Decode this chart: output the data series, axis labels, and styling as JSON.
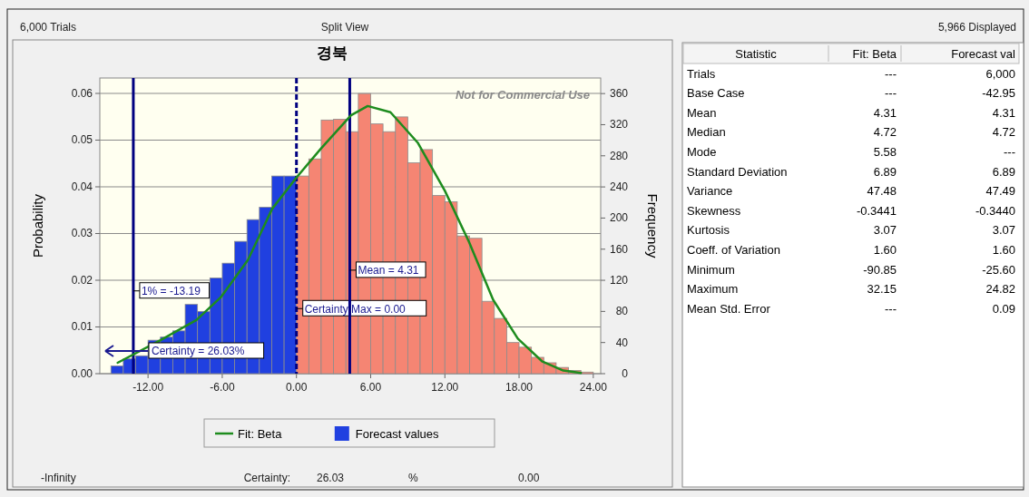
{
  "chart_data": [
    {
      "type": "histogram",
      "title": "경북",
      "ylabel": "Probability",
      "y2label": "Frequency",
      "annotations": [
        "6,000 Trials",
        "Split View",
        "5,966 Displayed",
        "Not for Commercial Use",
        "Certainty = 26.03%",
        "-Infinity",
        "Certainty:",
        "26.03",
        "%",
        "0.00"
      ],
      "xlim": [
        -15.9,
        24.6
      ],
      "xticks": [
        {
          "value": -12,
          "label": "-12.00"
        },
        {
          "value": -6,
          "label": "-6.00"
        },
        {
          "value": 0,
          "label": "0.00"
        },
        {
          "value": 6,
          "label": "6.00"
        },
        {
          "value": 12,
          "label": "12.00"
        },
        {
          "value": 18,
          "label": "18.00"
        },
        {
          "value": 24,
          "label": "24.00"
        }
      ],
      "ylim": [
        0,
        0.0633
      ],
      "yticks": [
        {
          "value": 0,
          "label": "0.00"
        },
        {
          "value": 0.01,
          "label": "0.01"
        },
        {
          "value": 0.02,
          "label": "0.02"
        },
        {
          "value": 0.03,
          "label": "0.03"
        },
        {
          "value": 0.04,
          "label": "0.04"
        },
        {
          "value": 0.05,
          "label": "0.05"
        },
        {
          "value": 0.06,
          "label": "0.06"
        }
      ],
      "y2lim": [
        0,
        380
      ],
      "y2ticks": [
        0,
        40,
        80,
        120,
        160,
        200,
        240,
        280,
        320,
        360
      ],
      "grid": "y",
      "legend": "bottom",
      "series": [
        {
          "type": "histogram",
          "name": "Forecast values",
          "axis": "y2",
          "color": "#2040e0",
          "bins": [
            -15,
            -14,
            -13,
            -12,
            -11,
            -10,
            -9,
            -8,
            -7,
            -6,
            -5,
            -4,
            -3,
            -2,
            -1,
            0,
            1,
            2,
            3,
            4,
            5,
            6,
            7,
            8,
            9,
            10,
            11,
            12,
            13,
            14,
            15,
            16,
            17,
            18,
            19,
            20,
            21,
            22,
            23,
            24
          ],
          "values": [
            10,
            19,
            23,
            43,
            47,
            55,
            89,
            80,
            123,
            142,
            170,
            198,
            214,
            254,
            254,
            254,
            276,
            326,
            327,
            311,
            360,
            321,
            311,
            330,
            271,
            288,
            229,
            221,
            177,
            174,
            93,
            71,
            40,
            34,
            21,
            14,
            8,
            4,
            2
          ],
          "colors": [
            "#2040e0",
            "#2040e0",
            "#2040e0",
            "#2040e0",
            "#2040e0",
            "#2040e0",
            "#2040e0",
            "#2040e0",
            "#2040e0",
            "#2040e0",
            "#2040e0",
            "#2040e0",
            "#2040e0",
            "#2040e0",
            "#2040e0",
            "#f58573",
            "#f58573",
            "#f58573",
            "#f58573",
            "#f58573",
            "#f58573",
            "#f58573",
            "#f58573",
            "#f58573",
            "#f58573",
            "#f58573",
            "#f58573",
            "#f58573",
            "#f58573",
            "#f58573",
            "#f58573",
            "#f58573",
            "#f58573",
            "#f58573",
            "#f58573",
            "#f58573",
            "#f58573",
            "#f58573",
            "#f58573"
          ]
        },
        {
          "type": "line",
          "name": "Fit: Beta",
          "axis": "y2",
          "color": "#1e8c1e",
          "x": [
            -14.46,
            -11.0,
            -8.09,
            -6.13,
            -3.93,
            -1.96,
            0,
            1.96,
            4.41,
            5.76,
            7.6,
            9.8,
            12.0,
            13.96,
            15.9,
            17.9,
            19.85,
            21.57,
            23.0
          ],
          "values": [
            14,
            43,
            69,
            98,
            146,
            212,
            252,
            289,
            332,
            344,
            336,
            297,
            235,
            169,
            95,
            45,
            16,
            4,
            1
          ]
        }
      ],
      "ref_lines": [
        {
          "axis": "x",
          "value": -13.19,
          "label": "1% = -13.19",
          "color": "#000080",
          "line_style": "solid"
        },
        {
          "axis": "x",
          "value": 0,
          "label": "Certainty Max = 0.00",
          "color": "#000080",
          "line_style": "dashed"
        },
        {
          "axis": "x",
          "value": 4.31,
          "label": "Mean = 4.31",
          "color": "#000080",
          "line_style": "solid"
        }
      ]
    },
    {
      "type": "other",
      "categories": [
        "Statistic",
        "Fit: Beta",
        "Forecast val"
      ],
      "y_categories": [
        "Trials",
        "Base Case",
        "Mean",
        "Median",
        "Mode",
        "Standard Deviation",
        "Variance",
        "Skewness",
        "Kurtosis",
        "Coeff. of Variation",
        "Minimum",
        "Maximum",
        "Mean Std. Error"
      ],
      "cell_labels": [
        [
          "---",
          "6,000"
        ],
        [
          "---",
          "-42.95"
        ],
        [
          "4.31",
          "4.31"
        ],
        [
          "4.72",
          "4.72"
        ],
        [
          "5.58",
          "---"
        ],
        [
          "6.89",
          "6.89"
        ],
        [
          "47.48",
          "47.49"
        ],
        [
          "-0.3441",
          "-0.3440"
        ],
        [
          "3.07",
          "3.07"
        ],
        [
          "1.60",
          "1.60"
        ],
        [
          "-90.85",
          "-25.60"
        ],
        [
          "32.15",
          "24.82"
        ],
        [
          "---",
          "0.09"
        ]
      ]
    }
  ]
}
